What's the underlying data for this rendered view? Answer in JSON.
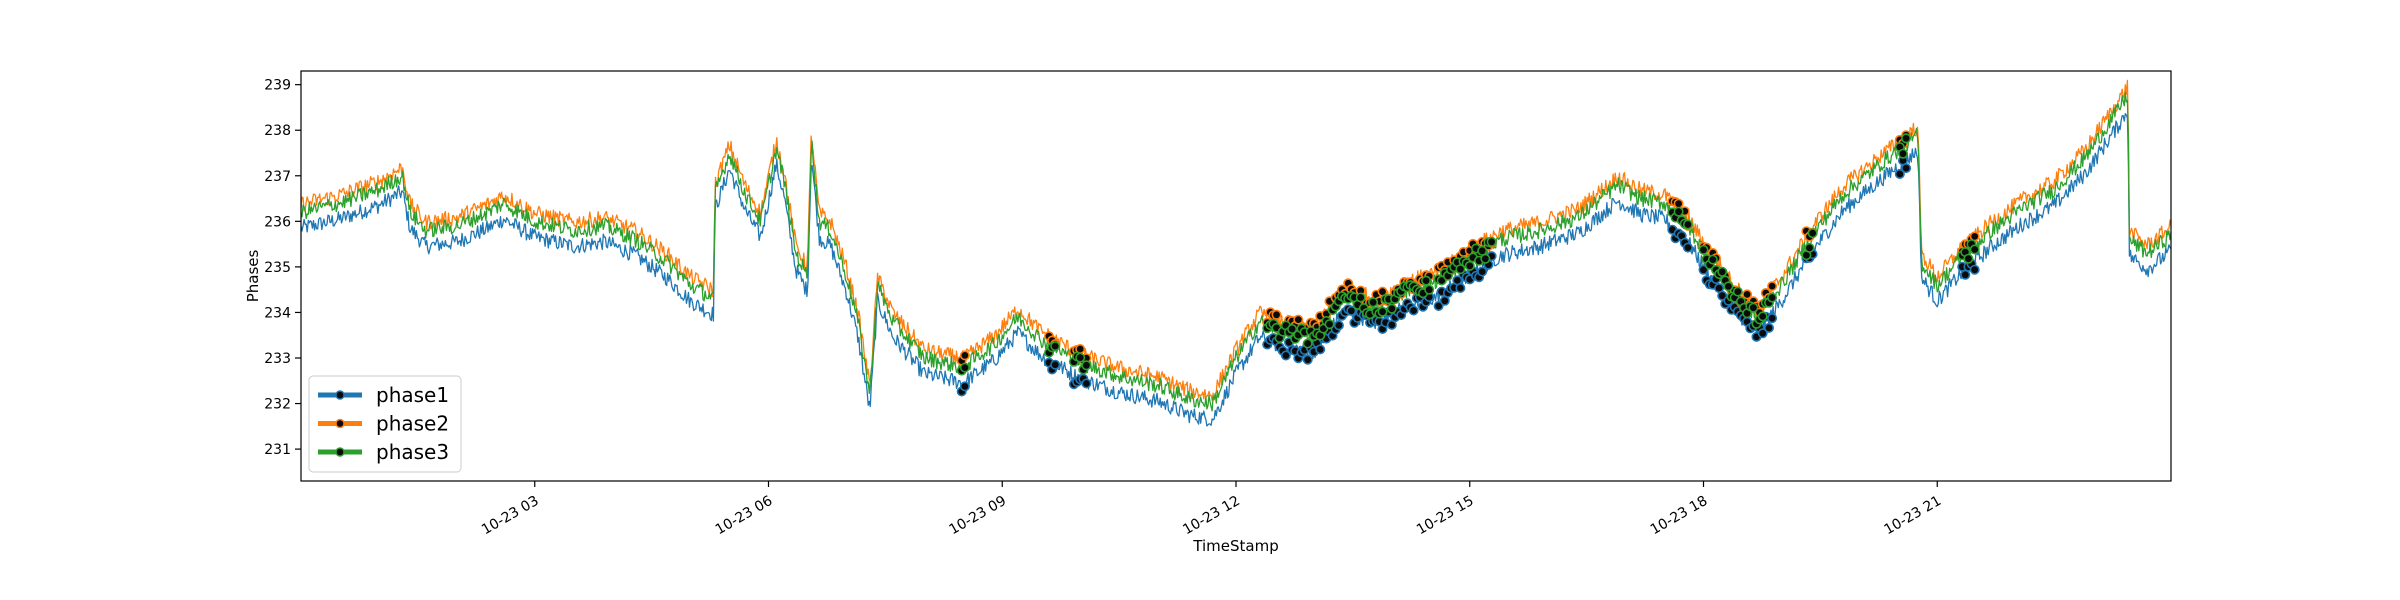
{
  "chart_data": {
    "type": "line",
    "title": "",
    "xlabel": "TimeStamp",
    "ylabel": "Phases",
    "x_start_hour": 0.0,
    "x_end_hour": 24.0,
    "xlim_hours": [
      0,
      24
    ],
    "ylim": [
      230.3,
      239.3
    ],
    "x_ticks": [
      {
        "hour": 3,
        "label": "10-23 03"
      },
      {
        "hour": 6,
        "label": "10-23 06"
      },
      {
        "hour": 9,
        "label": "10-23 09"
      },
      {
        "hour": 12,
        "label": "10-23 12"
      },
      {
        "hour": 15,
        "label": "10-23 15"
      },
      {
        "hour": 18,
        "label": "10-23 18"
      },
      {
        "hour": 21,
        "label": "10-23 21"
      }
    ],
    "y_ticks": [
      231,
      232,
      233,
      234,
      235,
      236,
      237,
      238,
      239
    ],
    "grid": false,
    "legend_position": "lower-left",
    "phase3_profile": [
      [
        0.0,
        236.2
      ],
      [
        0.5,
        236.4
      ],
      [
        1.0,
        236.7
      ],
      [
        1.3,
        237.0
      ],
      [
        1.4,
        236.2
      ],
      [
        1.6,
        235.8
      ],
      [
        2.0,
        235.9
      ],
      [
        2.4,
        236.2
      ],
      [
        2.6,
        236.4
      ],
      [
        3.0,
        236.0
      ],
      [
        3.5,
        235.8
      ],
      [
        3.9,
        235.9
      ],
      [
        4.3,
        235.6
      ],
      [
        4.7,
        235.1
      ],
      [
        5.0,
        234.6
      ],
      [
        5.3,
        234.3
      ],
      [
        5.31,
        236.6
      ],
      [
        5.5,
        237.5
      ],
      [
        5.7,
        236.6
      ],
      [
        5.9,
        236.0
      ],
      [
        6.0,
        236.8
      ],
      [
        6.1,
        237.6
      ],
      [
        6.2,
        236.9
      ],
      [
        6.35,
        235.3
      ],
      [
        6.5,
        234.8
      ],
      [
        6.55,
        237.8
      ],
      [
        6.65,
        236.0
      ],
      [
        6.8,
        235.8
      ],
      [
        7.0,
        234.8
      ],
      [
        7.15,
        233.8
      ],
      [
        7.3,
        232.2
      ],
      [
        7.4,
        234.6
      ],
      [
        7.6,
        233.8
      ],
      [
        8.0,
        233.0
      ],
      [
        8.5,
        232.8
      ],
      [
        8.9,
        233.3
      ],
      [
        9.2,
        233.9
      ],
      [
        9.5,
        233.4
      ],
      [
        10.0,
        232.9
      ],
      [
        10.5,
        232.6
      ],
      [
        11.0,
        232.4
      ],
      [
        11.4,
        232.1
      ],
      [
        11.7,
        232.0
      ],
      [
        12.0,
        233.0
      ],
      [
        12.3,
        233.8
      ],
      [
        12.6,
        233.6
      ],
      [
        13.0,
        233.5
      ],
      [
        13.4,
        234.4
      ],
      [
        13.8,
        234.1
      ],
      [
        14.2,
        234.5
      ],
      [
        14.6,
        234.7
      ],
      [
        15.0,
        235.2
      ],
      [
        15.4,
        235.6
      ],
      [
        15.9,
        235.8
      ],
      [
        16.4,
        236.1
      ],
      [
        16.9,
        236.8
      ],
      [
        17.2,
        236.5
      ],
      [
        17.5,
        236.4
      ],
      [
        17.8,
        235.9
      ],
      [
        18.1,
        235.1
      ],
      [
        18.4,
        234.4
      ],
      [
        18.7,
        233.9
      ],
      [
        19.0,
        234.6
      ],
      [
        19.4,
        235.7
      ],
      [
        19.8,
        236.6
      ],
      [
        20.3,
        237.3
      ],
      [
        20.75,
        237.9
      ],
      [
        20.8,
        235.1
      ],
      [
        21.0,
        234.6
      ],
      [
        21.3,
        235.2
      ],
      [
        21.7,
        235.8
      ],
      [
        22.1,
        236.3
      ],
      [
        22.5,
        236.7
      ],
      [
        22.9,
        237.4
      ],
      [
        23.3,
        238.4
      ],
      [
        23.45,
        238.8
      ],
      [
        23.46,
        235.6
      ],
      [
        23.7,
        235.3
      ],
      [
        24.0,
        235.7
      ]
    ],
    "series": [
      {
        "name": "phase1",
        "color": "#1f77b4",
        "offset": -0.35
      },
      {
        "name": "phase2",
        "color": "#ff7f0e",
        "offset": 0.18
      },
      {
        "name": "phase3",
        "color": "#2ca02c",
        "offset": 0.0
      }
    ],
    "highlight_windows_hours": [
      [
        8.45,
        8.55
      ],
      [
        9.6,
        9.7
      ],
      [
        9.9,
        10.1
      ],
      [
        12.4,
        14.5
      ],
      [
        14.6,
        15.3
      ],
      [
        17.6,
        17.8
      ],
      [
        18.0,
        18.9
      ],
      [
        19.3,
        19.4
      ],
      [
        20.5,
        20.6
      ],
      [
        21.3,
        21.5
      ]
    ]
  },
  "legend": {
    "items": [
      {
        "label": "phase1",
        "color": "#1f77b4"
      },
      {
        "label": "phase2",
        "color": "#ff7f0e"
      },
      {
        "label": "phase3",
        "color": "#2ca02c"
      }
    ]
  }
}
